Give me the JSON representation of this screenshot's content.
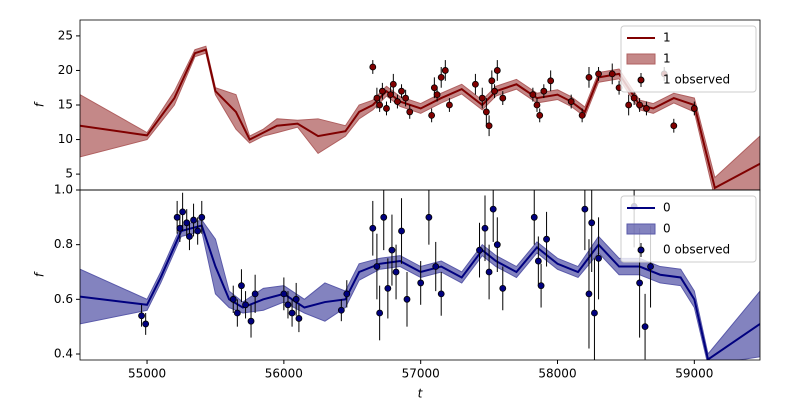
{
  "chart_data": [
    {
      "type": "line",
      "ylabel": "f",
      "legend": "upper right",
      "xlim": [
        54510,
        59480
      ],
      "ylim": [
        2.7,
        27.3
      ],
      "yticks": [
        5,
        10,
        15,
        20,
        25
      ],
      "x": [
        54510,
        55000,
        55200,
        55350,
        55430,
        55500,
        55650,
        55750,
        55850,
        55950,
        56100,
        56250,
        56450,
        56550,
        56650,
        56750,
        56850,
        57000,
        57150,
        57300,
        57450,
        57550,
        57700,
        57850,
        58000,
        58100,
        58200,
        58300,
        58450,
        58600,
        58700,
        58850,
        59000,
        59150,
        59480
      ],
      "series": [
        {
          "name": "1",
          "color": "#800000",
          "values": [
            12.0,
            10.6,
            16,
            22.5,
            23,
            17,
            14,
            10,
            11,
            12,
            12.3,
            10.5,
            11.2,
            14,
            15,
            17,
            15.5,
            14.5,
            16,
            17.3,
            15,
            17,
            18,
            16,
            16.5,
            15.5,
            14,
            19,
            19.5,
            15,
            14.5,
            16,
            15,
            3.0,
            6.5
          ]
        }
      ],
      "band": {
        "name": "1",
        "color": "#b06060",
        "lower": [
          7.5,
          10,
          15,
          22,
          22.5,
          16.5,
          11.5,
          9.5,
          10.5,
          11,
          11.8,
          8,
          10.5,
          13,
          14.3,
          16.3,
          14.8,
          13.8,
          15.3,
          16.6,
          14.3,
          16.3,
          17.3,
          15.3,
          15.8,
          14.8,
          13.3,
          18.3,
          18.8,
          14.3,
          13.8,
          15.3,
          14,
          1.5,
          2
        ],
        "upper": [
          16.5,
          11,
          17,
          23,
          23.5,
          17.5,
          16.5,
          10.5,
          11.5,
          13,
          12.8,
          13,
          12,
          15,
          15.7,
          17.7,
          16.2,
          15.2,
          16.7,
          18,
          15.7,
          17.7,
          18.7,
          16.7,
          17.2,
          16.2,
          14.7,
          19.7,
          20.2,
          15.7,
          15.2,
          16.7,
          16,
          4.5,
          10.5
        ]
      },
      "observed": {
        "name": "1 observed",
        "color": "#800000",
        "x": [
          56650,
          56680,
          56700,
          56720,
          56750,
          56780,
          56800,
          56830,
          56860,
          56890,
          56920,
          57080,
          57100,
          57120,
          57150,
          57180,
          57210,
          57400,
          57450,
          57480,
          57500,
          57520,
          57540,
          57560,
          57600,
          57820,
          57850,
          57870,
          57900,
          57950,
          58100,
          58180,
          58230,
          58300,
          58400,
          58450,
          58520,
          58560,
          58600,
          58650,
          58780,
          58850,
          59000
        ],
        "values": [
          20.5,
          16,
          15,
          17,
          14.5,
          16.5,
          18,
          15.5,
          17,
          16,
          14,
          13.5,
          17.5,
          16.5,
          19,
          20,
          15,
          18,
          16,
          14,
          12,
          18.5,
          17,
          20,
          16,
          16.5,
          15,
          13.5,
          17,
          18.5,
          15.5,
          13.5,
          19,
          19.5,
          19.5,
          17.5,
          15,
          16,
          15,
          14.5,
          19.5,
          12,
          14.5
        ],
        "errors": [
          1,
          1.5,
          1,
          1.2,
          1,
          1.2,
          1.5,
          1,
          1,
          1.2,
          1,
          1,
          1.5,
          1,
          1.5,
          1.5,
          1,
          1.5,
          1.5,
          2,
          1.5,
          1.5,
          1,
          1.5,
          1,
          1,
          1,
          1,
          1,
          1.5,
          1,
          1,
          1.5,
          1,
          1.5,
          1,
          1.5,
          1,
          1,
          1,
          1,
          1,
          1
        ]
      }
    },
    {
      "type": "line",
      "ylabel": "f",
      "xlabel": "t",
      "legend": "upper right",
      "xlim": [
        54510,
        59480
      ],
      "ylim": [
        0.378,
        1.0
      ],
      "xticks": [
        55000,
        56000,
        57000,
        58000,
        59000
      ],
      "yticks": [
        0.4,
        0.6,
        0.8,
        {
          "value": 1,
          "label": "1.0"
        }
      ],
      "x": [
        54510,
        55000,
        55100,
        55250,
        55400,
        55500,
        55600,
        55700,
        55850,
        56000,
        56150,
        56300,
        56450,
        56550,
        56700,
        56850,
        57000,
        57150,
        57300,
        57450,
        57550,
        57700,
        57850,
        58000,
        58150,
        58300,
        58450,
        58600,
        58750,
        58900,
        59000,
        59100,
        59480
      ],
      "series": [
        {
          "name": "0",
          "color": "#00007f",
          "values": [
            0.61,
            0.58,
            0.68,
            0.85,
            0.87,
            0.72,
            0.6,
            0.57,
            0.6,
            0.62,
            0.57,
            0.59,
            0.6,
            0.7,
            0.73,
            0.74,
            0.7,
            0.72,
            0.68,
            0.78,
            0.74,
            0.7,
            0.79,
            0.73,
            0.7,
            0.8,
            0.72,
            0.72,
            0.69,
            0.68,
            0.6,
            0.38,
            0.51
          ]
        }
      ],
      "band": {
        "name": "0",
        "color": "#5a5aaa",
        "lower": [
          0.51,
          0.56,
          0.66,
          0.83,
          0.85,
          0.62,
          0.57,
          0.55,
          0.56,
          0.59,
          0.55,
          0.52,
          0.57,
          0.67,
          0.71,
          0.72,
          0.68,
          0.7,
          0.66,
          0.76,
          0.72,
          0.68,
          0.77,
          0.71,
          0.68,
          0.77,
          0.69,
          0.69,
          0.66,
          0.65,
          0.57,
          0.36,
          0.39
        ],
        "upper": [
          0.71,
          0.6,
          0.7,
          0.87,
          0.89,
          0.82,
          0.63,
          0.59,
          0.64,
          0.65,
          0.6,
          0.66,
          0.63,
          0.73,
          0.75,
          0.76,
          0.72,
          0.74,
          0.7,
          0.8,
          0.76,
          0.72,
          0.81,
          0.75,
          0.72,
          0.83,
          0.75,
          0.75,
          0.72,
          0.71,
          0.63,
          0.4,
          0.63
        ]
      },
      "observed": {
        "name": "0 observed",
        "color": "#00007f",
        "x": [
          54960,
          54990,
          55220,
          55240,
          55260,
          55290,
          55310,
          55340,
          55370,
          55400,
          55630,
          55660,
          55690,
          55720,
          55760,
          55790,
          56000,
          56030,
          56060,
          56090,
          56110,
          56420,
          56460,
          56650,
          56680,
          56700,
          56730,
          56760,
          56790,
          56820,
          56860,
          56900,
          57000,
          57060,
          57110,
          57150,
          57430,
          57470,
          57500,
          57530,
          57560,
          57600,
          57830,
          57860,
          57880,
          57920,
          58200,
          58230,
          58250,
          58270,
          58300,
          58560,
          58600,
          58640,
          58680
        ],
        "values": [
          0.54,
          0.51,
          0.9,
          0.86,
          0.92,
          0.88,
          0.83,
          0.89,
          0.85,
          0.9,
          0.6,
          0.55,
          0.65,
          0.58,
          0.52,
          0.62,
          0.62,
          0.58,
          0.55,
          0.6,
          0.53,
          0.56,
          0.62,
          0.86,
          0.72,
          0.55,
          0.9,
          0.64,
          0.78,
          0.7,
          0.85,
          0.6,
          0.66,
          0.9,
          0.72,
          0.62,
          0.78,
          0.86,
          0.7,
          0.93,
          0.8,
          0.64,
          0.9,
          0.74,
          0.65,
          0.82,
          0.93,
          0.62,
          0.88,
          0.55,
          0.75,
          0.94,
          0.66,
          0.5,
          0.72
        ],
        "errors": [
          0.04,
          0.04,
          0.06,
          0.05,
          0.07,
          0.05,
          0.05,
          0.06,
          0.05,
          0.06,
          0.05,
          0.05,
          0.06,
          0.05,
          0.06,
          0.07,
          0.06,
          0.05,
          0.05,
          0.06,
          0.05,
          0.04,
          0.05,
          0.1,
          0.12,
          0.1,
          0.12,
          0.11,
          0.13,
          0.1,
          0.12,
          0.1,
          0.08,
          0.1,
          0.09,
          0.08,
          0.1,
          0.12,
          0.1,
          0.12,
          0.1,
          0.08,
          0.1,
          0.09,
          0.08,
          0.1,
          0.15,
          0.2,
          0.18,
          0.2,
          0.15,
          0.15,
          0.2,
          0.12,
          0.15
        ]
      }
    }
  ]
}
